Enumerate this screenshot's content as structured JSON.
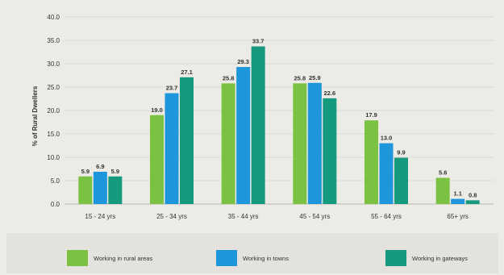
{
  "chart_data": {
    "type": "bar",
    "title": "",
    "xlabel": "",
    "ylabel": "% of Rural Dwellers",
    "ylim": [
      0,
      40
    ],
    "yticks": [
      "0.0",
      "5.0",
      "10.0",
      "15.0",
      "20.0",
      "25.0",
      "30.0",
      "35.0",
      "40.0"
    ],
    "grid": true,
    "legend_position": "bottom",
    "categories": [
      "15 - 24 yrs",
      "25 - 34 yrs",
      "35 - 44 yrs",
      "45 - 54 yrs",
      "55 - 64 yrs",
      "65+ yrs"
    ],
    "series": [
      {
        "name": "Working in rural areas",
        "color": "#7cc242",
        "values": [
          5.9,
          19.0,
          25.8,
          25.8,
          17.9,
          5.6
        ],
        "labels": [
          "5.9",
          "19.0",
          "25.8",
          "25.8",
          "17.9",
          "5.6"
        ]
      },
      {
        "name": "Working in towns",
        "color": "#1e96dc",
        "values": [
          6.9,
          23.7,
          29.3,
          25.9,
          13.0,
          1.1
        ],
        "labels": [
          "6.9",
          "23.7",
          "29.3",
          "25.9",
          "13.0",
          "1.1"
        ]
      },
      {
        "name": "Working in gateways",
        "color": "#169a7e",
        "values": [
          5.9,
          27.1,
          33.7,
          22.6,
          9.9,
          0.8
        ],
        "labels": [
          "5.9",
          "27.1",
          "33.7",
          "22.6",
          "9.9",
          "0.8"
        ]
      }
    ]
  }
}
